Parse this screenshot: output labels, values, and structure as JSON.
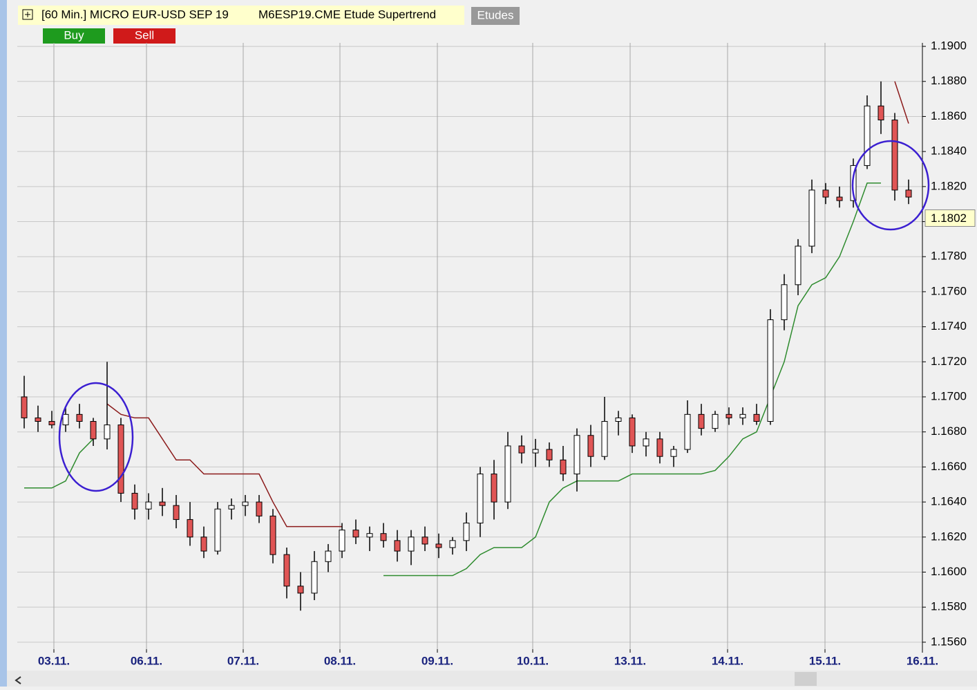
{
  "header": {
    "title": "[60 Min.] MICRO EUR-USD SEP 19",
    "study": "M6ESP19.CME Etude Supertrend",
    "studies_button": "Etudes",
    "buy": "Buy",
    "sell": "Sell"
  },
  "chart_data": {
    "type": "candlestick",
    "open": [
      1.17,
      1.1688,
      1.1686,
      1.1684,
      1.169,
      1.1686,
      1.1676,
      1.1684,
      1.1645,
      1.1636,
      1.164,
      1.1638,
      1.163,
      1.162,
      1.1612,
      1.1636,
      1.1638,
      1.164,
      1.1632,
      1.161,
      1.1592,
      1.1588,
      1.1606,
      1.1612,
      1.1624,
      1.162,
      1.1622,
      1.1618,
      1.1612,
      1.162,
      1.1616,
      1.1614,
      1.1618,
      1.1628,
      1.1656,
      1.164,
      1.1672,
      1.1668,
      1.167,
      1.1664,
      1.1656,
      1.1678,
      1.1666,
      1.1686,
      1.1688,
      1.1672,
      1.1676,
      1.1666,
      1.167,
      1.169,
      1.1682,
      1.169,
      1.1688,
      1.169,
      1.1686,
      1.1744,
      1.1764,
      1.1786,
      1.1818,
      1.1814,
      1.1812,
      1.1832,
      1.1866,
      1.1858,
      1.1818
    ],
    "high": [
      1.1712,
      1.1695,
      1.1692,
      1.1694,
      1.1696,
      1.1688,
      1.172,
      1.1688,
      1.165,
      1.1645,
      1.1648,
      1.1644,
      1.164,
      1.1626,
      1.164,
      1.1642,
      1.1644,
      1.1644,
      1.1636,
      1.1614,
      1.16,
      1.1612,
      1.1616,
      1.1628,
      1.163,
      1.1626,
      1.1628,
      1.1624,
      1.1624,
      1.1626,
      1.1622,
      1.162,
      1.1634,
      1.166,
      1.1664,
      1.168,
      1.1678,
      1.1676,
      1.1674,
      1.1672,
      1.1682,
      1.1684,
      1.17,
      1.1692,
      1.169,
      1.168,
      1.168,
      1.1672,
      1.1698,
      1.1696,
      1.1692,
      1.1694,
      1.1694,
      1.1696,
      1.175,
      1.177,
      1.179,
      1.1824,
      1.1822,
      1.182,
      1.1836,
      1.1872,
      1.188,
      1.1862,
      1.1824
    ],
    "low": [
      1.1682,
      1.168,
      1.1682,
      1.168,
      1.1682,
      1.1672,
      1.167,
      1.164,
      1.163,
      1.163,
      1.1632,
      1.1625,
      1.1615,
      1.1608,
      1.161,
      1.163,
      1.1632,
      1.1628,
      1.1605,
      1.1585,
      1.1578,
      1.1584,
      1.16,
      1.1608,
      1.1616,
      1.1612,
      1.1614,
      1.1606,
      1.1604,
      1.1612,
      1.1608,
      1.161,
      1.1612,
      1.162,
      1.163,
      1.1636,
      1.1662,
      1.166,
      1.166,
      1.1652,
      1.1646,
      1.166,
      1.1664,
      1.1678,
      1.1668,
      1.1666,
      1.1662,
      1.166,
      1.1668,
      1.1678,
      1.168,
      1.1684,
      1.1684,
      1.1684,
      1.1684,
      1.1738,
      1.1758,
      1.1782,
      1.181,
      1.1808,
      1.1808,
      1.183,
      1.185,
      1.1812,
      1.181
    ],
    "close": [
      1.1688,
      1.1686,
      1.1684,
      1.169,
      1.1686,
      1.1676,
      1.1684,
      1.1645,
      1.1636,
      1.164,
      1.1638,
      1.163,
      1.162,
      1.1612,
      1.1636,
      1.1638,
      1.164,
      1.1632,
      1.161,
      1.1592,
      1.1588,
      1.1606,
      1.1612,
      1.1624,
      1.162,
      1.1622,
      1.1618,
      1.1612,
      1.162,
      1.1616,
      1.1614,
      1.1618,
      1.1628,
      1.1656,
      1.164,
      1.1672,
      1.1668,
      1.167,
      1.1664,
      1.1656,
      1.1678,
      1.1666,
      1.1686,
      1.1688,
      1.1672,
      1.1676,
      1.1666,
      1.167,
      1.169,
      1.1682,
      1.169,
      1.1688,
      1.169,
      1.1686,
      1.1744,
      1.1764,
      1.1786,
      1.1818,
      1.1814,
      1.1812,
      1.1832,
      1.1866,
      1.1858,
      1.1818,
      1.1814
    ],
    "up_color": "#ffffff",
    "down_color": "#e05555",
    "series": [
      {
        "name": "Supertrend up",
        "color": "#2e8b2e",
        "values": [
          1.1648,
          1.1648,
          1.1648,
          1.1652,
          1.1668,
          1.1676,
          null,
          null,
          null,
          null,
          null,
          null,
          null,
          null,
          null,
          null,
          null,
          null,
          null,
          null,
          null,
          null,
          null,
          null,
          null,
          null,
          1.1598,
          1.1598,
          1.1598,
          1.1598,
          1.1598,
          1.1598,
          1.1602,
          1.161,
          1.1614,
          1.1614,
          1.1614,
          1.162,
          1.164,
          1.1648,
          1.1652,
          1.1652,
          1.1652,
          1.1652,
          1.1656,
          1.1656,
          1.1656,
          1.1656,
          1.1656,
          1.1656,
          1.1658,
          1.1666,
          1.1676,
          1.168,
          1.17,
          1.172,
          1.1752,
          1.1764,
          1.1768,
          1.178,
          1.18,
          1.1822,
          1.1822,
          null,
          null
        ]
      },
      {
        "name": "Supertrend down",
        "color": "#8b1a1a",
        "values": [
          null,
          null,
          null,
          null,
          null,
          null,
          1.1696,
          1.169,
          1.1688,
          1.1688,
          1.1676,
          1.1664,
          1.1664,
          1.1656,
          1.1656,
          1.1656,
          1.1656,
          1.1656,
          1.164,
          1.1626,
          1.1626,
          1.1626,
          1.1626,
          1.1626,
          null,
          null,
          null,
          null,
          null,
          null,
          null,
          null,
          null,
          null,
          null,
          null,
          null,
          null,
          null,
          null,
          null,
          null,
          null,
          null,
          null,
          null,
          null,
          null,
          null,
          null,
          null,
          null,
          null,
          null,
          null,
          null,
          null,
          null,
          null,
          null,
          null,
          null,
          null,
          1.188,
          1.1856
        ]
      }
    ],
    "current_price": 1.1802,
    "xlim": [
      0,
      65.5
    ],
    "xticks": [
      {
        "value": 2.65,
        "label": "03.11."
      },
      {
        "value": 9.35,
        "label": "06.11."
      },
      {
        "value": 16.35,
        "label": "07.11."
      },
      {
        "value": 23.35,
        "label": "08.11."
      },
      {
        "value": 30.4,
        "label": "09.11."
      },
      {
        "value": 37.3,
        "label": "10.11."
      },
      {
        "value": 44.35,
        "label": "13.11."
      },
      {
        "value": 51.4,
        "label": "14.11."
      },
      {
        "value": 58.45,
        "label": "15.11."
      },
      {
        "value": 65.5,
        "label": "16.11."
      }
    ],
    "ylim": [
      1.1556,
      1.1902
    ],
    "yticks": [
      {
        "value": 1.156,
        "label": "1.1560"
      },
      {
        "value": 1.158,
        "label": "1.1580"
      },
      {
        "value": 1.16,
        "label": "1.1600"
      },
      {
        "value": 1.162,
        "label": "1.1620"
      },
      {
        "value": 1.164,
        "label": "1.1640"
      },
      {
        "value": 1.166,
        "label": "1.1660"
      },
      {
        "value": 1.168,
        "label": "1.1680"
      },
      {
        "value": 1.17,
        "label": "1.1700"
      },
      {
        "value": 1.172,
        "label": "1.1720"
      },
      {
        "value": 1.174,
        "label": "1.1740"
      },
      {
        "value": 1.176,
        "label": "1.1760"
      },
      {
        "value": 1.178,
        "label": "1.1780"
      },
      {
        "value": 1.18,
        "label": "1.1800"
      },
      {
        "value": 1.182,
        "label": "1.1820"
      },
      {
        "value": 1.184,
        "label": "1.1840"
      },
      {
        "value": 1.186,
        "label": "1.1860"
      },
      {
        "value": 1.188,
        "label": "1.1880"
      },
      {
        "value": 1.19,
        "label": "1.1900"
      }
    ],
    "grid": true
  }
}
